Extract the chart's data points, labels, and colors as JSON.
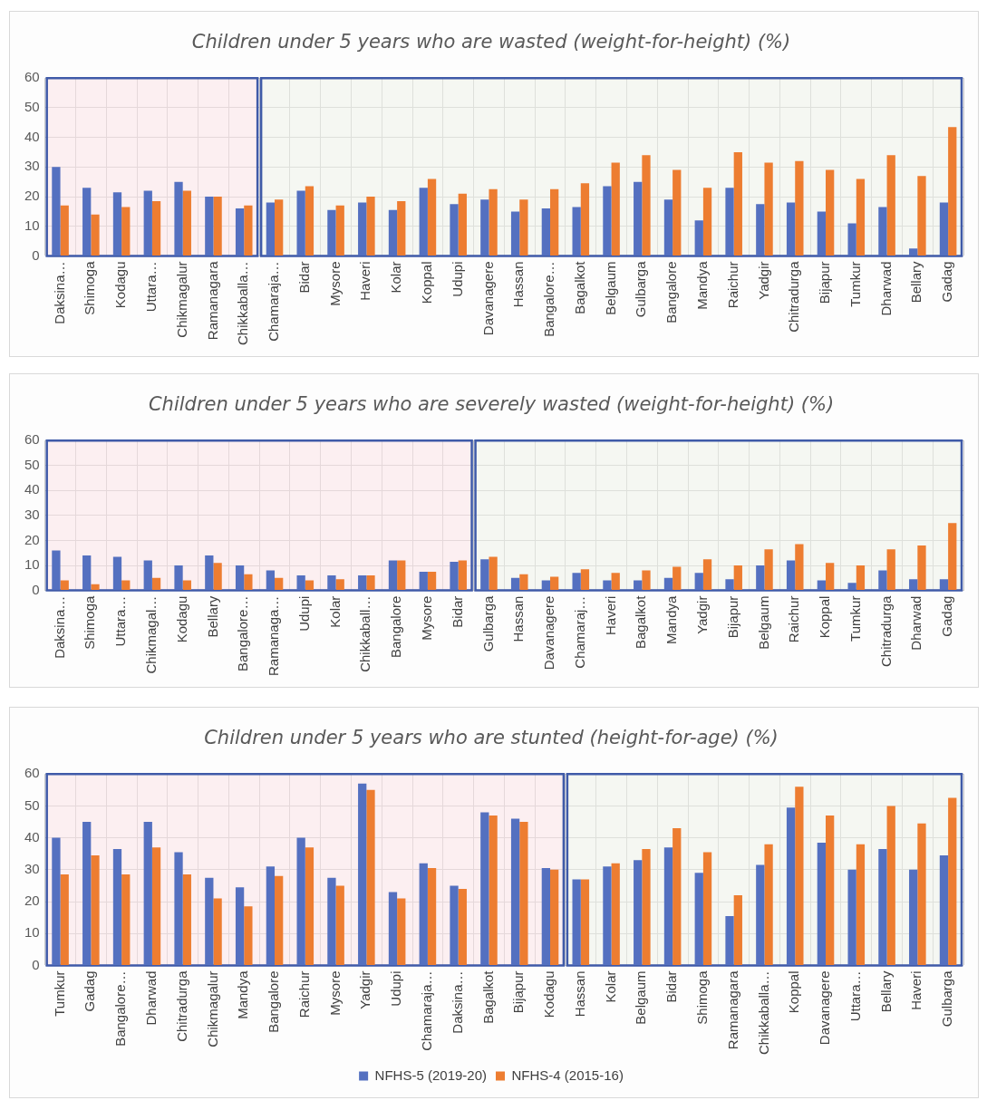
{
  "chart_data": [
    {
      "type": "bar",
      "title": "Children under 5 years who are wasted (weight-for-height) (%)",
      "categories": [
        "Daksina…",
        "Shimoga",
        "Kodagu",
        "Uttara…",
        "Chikmagalur",
        "Ramanagara",
        "Chikkaballa…",
        "Chamaraja…",
        "Bidar",
        "Mysore",
        "Haveri",
        "Kolar",
        "Koppal",
        "Udupi",
        "Davanagere",
        "Hassan",
        "Bangalore…",
        "Bagalkot",
        "Belgaum",
        "Gulbarga",
        "Bangalore",
        "Mandya",
        "Raichur",
        "Yadgir",
        "Chitradurga",
        "Bijapur",
        "Tumkur",
        "Dharwad",
        "Bellary",
        "Gadag"
      ],
      "series": [
        {
          "color": "#5470c0",
          "values": [
            30,
            23,
            21.5,
            22,
            25,
            20,
            16,
            18,
            22,
            15.5,
            18,
            15.5,
            23,
            17.5,
            19,
            15,
            16,
            16.5,
            23.5,
            25,
            19,
            12,
            23,
            17.5,
            18,
            15,
            11,
            16.5,
            2.5,
            18
          ]
        },
        {
          "color": "#ed7d31",
          "values": [
            17,
            14,
            16.5,
            18.5,
            22,
            20,
            17,
            19,
            23.5,
            17,
            20,
            18.5,
            26,
            21,
            22.5,
            19,
            22.5,
            24.5,
            31.5,
            34,
            29,
            23,
            35,
            31.5,
            32,
            29,
            26,
            34,
            27,
            43.5
          ]
        }
      ],
      "bands": [
        {
          "axis": "x",
          "from": "Daksina…",
          "to": "Chikkaballa…",
          "color": "#fbe4e7"
        },
        {
          "axis": "x",
          "from": "Chamaraja…",
          "to": "Gadag",
          "color": "#eef2ea"
        }
      ],
      "ylim": [
        0,
        60
      ],
      "yticks": [
        0,
        10,
        20,
        30,
        40,
        50,
        60
      ],
      "grid": true,
      "legend": false
    },
    {
      "type": "bar",
      "title": "Children under 5 years who are severely wasted (weight-for-height) (%)",
      "categories": [
        "Daksina…",
        "Shimoga",
        "Uttara…",
        "Chikmagal…",
        "Kodagu",
        "Bellary",
        "Bangalore…",
        "Ramanaga…",
        "Udupi",
        "Kolar",
        "Chikkaball…",
        "Bangalore",
        "Mysore",
        "Bidar",
        "Gulbarga",
        "Hassan",
        "Davanagere",
        "Chamaraj…",
        "Haveri",
        "Bagalkot",
        "Mandya",
        "Yadgir",
        "Bijapur",
        "Belgaum",
        "Raichur",
        "Koppal",
        "Tumkur",
        "Chitradurga",
        "Dharwad",
        "Gadag"
      ],
      "series": [
        {
          "color": "#5470c0",
          "values": [
            16,
            14,
            13.5,
            12,
            10,
            14,
            10,
            8,
            6,
            6,
            6,
            12,
            7.5,
            11.5,
            12.5,
            5,
            4,
            7,
            4,
            4,
            5,
            7,
            4.5,
            10,
            12,
            4,
            3,
            8,
            4.5,
            4.5
          ]
        },
        {
          "color": "#ed7d31",
          "values": [
            4,
            2.5,
            4,
            5,
            4,
            11,
            6.5,
            5,
            4,
            4.5,
            6,
            12,
            7.5,
            12,
            13.5,
            6.5,
            5.5,
            8.5,
            7,
            8,
            9.5,
            12.5,
            10,
            16.5,
            18.5,
            11,
            10,
            16.5,
            18,
            27
          ]
        }
      ],
      "bands": [
        {
          "axis": "x",
          "from": "Daksina…",
          "to": "Bidar",
          "color": "#fbe4e7"
        },
        {
          "axis": "x",
          "from": "Gulbarga",
          "to": "Gadag",
          "color": "#eef2ea"
        }
      ],
      "ylim": [
        0,
        60
      ],
      "yticks": [
        0,
        10,
        20,
        30,
        40,
        50,
        60
      ],
      "grid": true,
      "legend": false
    },
    {
      "type": "bar",
      "title": "Children under 5 years who are stunted (height-for-age) (%)",
      "categories": [
        "Tumkur",
        "Gadag",
        "Bangalore…",
        "Dharwad",
        "Chitradurga",
        "Chikmagalur",
        "Mandya",
        "Bangalore",
        "Raichur",
        "Mysore",
        "Yadgir",
        "Udupi",
        "Chamaraja…",
        "Daksina…",
        "Bagalkot",
        "Bijapur",
        "Kodagu",
        "Hassan",
        "Kolar",
        "Belgaum",
        "Bidar",
        "Shimoga",
        "Ramanagara",
        "Chikkaballa…",
        "Koppal",
        "Davanagere",
        "Uttara…",
        "Bellary",
        "Haveri",
        "Gulbarga"
      ],
      "series": [
        {
          "name": "NFHS-5 (2019-20)",
          "color": "#5470c0",
          "values": [
            40,
            45,
            36.5,
            45,
            35.5,
            27.5,
            24.5,
            31,
            40,
            27.5,
            57,
            23,
            32,
            25,
            48,
            46,
            30.5,
            27,
            31,
            33,
            37,
            29,
            15.5,
            31.5,
            49.5,
            38.5,
            30,
            36.5,
            30,
            34.5
          ]
        },
        {
          "name": "NFHS-4 (2015-16)",
          "color": "#ed7d31",
          "values": [
            28.5,
            34.5,
            28.5,
            37,
            28.5,
            21,
            18.5,
            28,
            37,
            25,
            55,
            21,
            30.5,
            24,
            47,
            45,
            30,
            27,
            32,
            36.5,
            43,
            35.5,
            22,
            38,
            56,
            47,
            38,
            50,
            44.5,
            52.5
          ]
        }
      ],
      "bands": [
        {
          "axis": "x",
          "from": "Tumkur",
          "to": "Kodagu",
          "color": "#fbe4e7"
        },
        {
          "axis": "x",
          "from": "Hassan",
          "to": "Gulbarga",
          "color": "#eef2ea"
        }
      ],
      "ylim": [
        0,
        60
      ],
      "yticks": [
        0,
        10,
        20,
        30,
        40,
        50,
        60
      ],
      "grid": true,
      "legend": "bottom"
    }
  ]
}
